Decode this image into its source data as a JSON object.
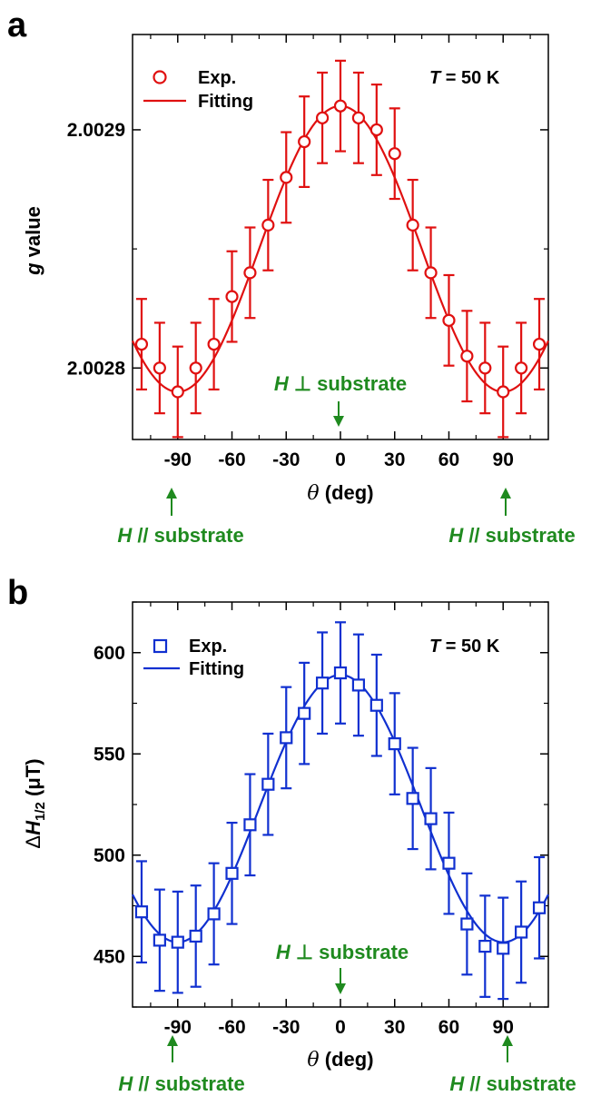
{
  "figure": {
    "panels": [
      {
        "letter": "a",
        "temperature": {
          "symbol": "T",
          "text": " = 50 K"
        },
        "ylabel": {
          "symbol": "g",
          "text": " value"
        },
        "legend": {
          "exp": "Exp.",
          "fit": "Fitting"
        },
        "annotations": {
          "perp": {
            "symbol": "H",
            "text": " ⊥ substrate"
          },
          "par": {
            "symbol": "H",
            "text": " // substrate"
          }
        }
      },
      {
        "letter": "b",
        "temperature": {
          "symbol": "T",
          "text": " = 50 K"
        },
        "ylabel": {
          "prefix": "Δ",
          "symbol": "H",
          "sub": "1/2",
          "text": "  (μT)"
        },
        "legend": {
          "exp": "Exp.",
          "fit": "Fitting"
        },
        "annotations": {
          "perp": {
            "symbol": "H",
            "text": " ⊥ substrate"
          },
          "par": {
            "symbol": "H",
            "text": " // substrate"
          }
        }
      }
    ],
    "xlabel": {
      "symbol": "θ",
      "text": " (deg)"
    },
    "colors": {
      "panel_a": "#e01010",
      "panel_b": "#1030d0",
      "annotation": "#1f8a1f"
    }
  },
  "chart_data": [
    {
      "type": "scatter",
      "title": "",
      "xlabel": "θ (deg)",
      "ylabel": "g value",
      "xlim": [
        -115,
        115
      ],
      "ylim": [
        2.00277,
        2.00294
      ],
      "xticks": [
        -90,
        -60,
        -30,
        0,
        30,
        60,
        90
      ],
      "yticks": [
        2.0028,
        2.0029
      ],
      "ytick_labels": [
        "2.0028",
        "2.0029"
      ],
      "legend_position": "top-left",
      "marker": "circle",
      "series": [
        {
          "name": "Exp.",
          "x": [
            -110,
            -100,
            -90,
            -80,
            -70,
            -60,
            -50,
            -40,
            -30,
            -20,
            -10,
            0,
            10,
            20,
            30,
            40,
            50,
            60,
            70,
            80,
            90,
            100,
            110
          ],
          "y": [
            2.00281,
            2.0028,
            2.00279,
            2.0028,
            2.00281,
            2.00283,
            2.00284,
            2.00286,
            2.00288,
            2.002895,
            2.002905,
            2.00291,
            2.002905,
            2.0029,
            2.00289,
            2.00286,
            2.00284,
            2.00282,
            2.002805,
            2.0028,
            2.00279,
            2.0028,
            2.00281
          ],
          "error": 1.9e-05
        },
        {
          "name": "Fitting",
          "type": "line",
          "model": {
            "center": 2.00285,
            "amplitude": 6e-05,
            "period_deg": 180
          }
        }
      ]
    },
    {
      "type": "scatter",
      "title": "",
      "xlabel": "θ (deg)",
      "ylabel": "ΔH1/2 (μT)",
      "xlim": [
        -115,
        115
      ],
      "ylim": [
        425,
        625
      ],
      "xticks": [
        -90,
        -60,
        -30,
        0,
        30,
        60,
        90
      ],
      "yticks": [
        450,
        500,
        550,
        600
      ],
      "ytick_labels": [
        "450",
        "500",
        "550",
        "600"
      ],
      "legend_position": "top-left",
      "marker": "square",
      "series": [
        {
          "name": "Exp.",
          "x": [
            -110,
            -100,
            -90,
            -80,
            -70,
            -60,
            -50,
            -40,
            -30,
            -20,
            -10,
            0,
            10,
            20,
            30,
            40,
            50,
            60,
            70,
            80,
            90,
            100,
            110
          ],
          "y": [
            472,
            458,
            457,
            460,
            471,
            491,
            515,
            535,
            558,
            570,
            585,
            590,
            584,
            574,
            555,
            528,
            518,
            496,
            466,
            455,
            454,
            462,
            474
          ],
          "error": 25
        },
        {
          "name": "Fitting",
          "type": "line",
          "model": {
            "center": 523,
            "amplitude": 66,
            "period_deg": 180
          }
        }
      ]
    }
  ]
}
